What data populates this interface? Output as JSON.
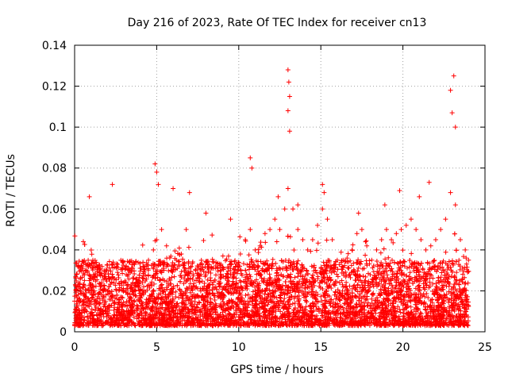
{
  "chart_data": {
    "type": "scatter",
    "title": "Day 216 of 2023, Rate Of TEC Index for receiver cn13",
    "xlabel": "GPS time / hours",
    "ylabel": "ROTI / TECUs",
    "xlim": [
      0,
      25
    ],
    "ylim": [
      0,
      0.14
    ],
    "xticks": [
      0,
      5,
      10,
      15,
      20,
      25
    ],
    "xtick_labels": [
      "0",
      "5",
      "10",
      "15",
      "20",
      "25"
    ],
    "yticks": [
      0,
      0.02,
      0.04,
      0.06,
      0.08,
      0.1,
      0.12,
      0.14
    ],
    "ytick_labels": [
      "0",
      "0.02",
      "0.04",
      "0.06",
      "0.08",
      "0.1",
      "0.12",
      "0.14"
    ],
    "grid": true,
    "marker": "+",
    "color": "#ff0000",
    "data_span_hours": [
      0,
      24
    ],
    "series": [
      {
        "name": "ROTI",
        "x": [
          0.0,
          0.3,
          0.6,
          0.9,
          1.2,
          1.5,
          1.8,
          2.1,
          2.4,
          2.7,
          3.0,
          3.3,
          3.6,
          3.9,
          4.2,
          4.5,
          4.8,
          5.0,
          5.3,
          5.6,
          5.9,
          6.2,
          6.5,
          6.8,
          7.1,
          7.4,
          7.7,
          8.0,
          8.3,
          8.6,
          8.9,
          9.2,
          9.5,
          9.8,
          10.1,
          10.4,
          10.7,
          11.0,
          11.3,
          11.6,
          11.9,
          12.2,
          12.5,
          12.8,
          13.0,
          13.3,
          13.6,
          13.9,
          14.2,
          14.5,
          14.8,
          15.1,
          15.4,
          15.7,
          16.0,
          16.3,
          16.6,
          16.9,
          17.2,
          17.5,
          17.8,
          18.1,
          18.4,
          18.7,
          19.0,
          19.3,
          19.6,
          19.9,
          20.2,
          20.5,
          20.8,
          21.1,
          21.4,
          21.7,
          22.0,
          22.3,
          22.6,
          22.9,
          23.2,
          23.5,
          23.8,
          24.0,
          4.9,
          5.0,
          5.1,
          10.7,
          10.8,
          13.0,
          13.05,
          13.1,
          13.0,
          13.1,
          15.1,
          15.2,
          22.9,
          23.0,
          23.1,
          23.2,
          21.0,
          21.6,
          19.8,
          6.0,
          7.0,
          2.3,
          0.9,
          8.0,
          9.5,
          12.4,
          13.6,
          17.3,
          18.9
        ],
        "y": [
          0.015,
          0.022,
          0.018,
          0.025,
          0.02,
          0.028,
          0.03,
          0.022,
          0.026,
          0.02,
          0.024,
          0.03,
          0.018,
          0.025,
          0.032,
          0.035,
          0.04,
          0.045,
          0.05,
          0.042,
          0.03,
          0.035,
          0.038,
          0.05,
          0.032,
          0.025,
          0.028,
          0.02,
          0.025,
          0.022,
          0.03,
          0.026,
          0.028,
          0.032,
          0.038,
          0.045,
          0.05,
          0.04,
          0.042,
          0.048,
          0.05,
          0.055,
          0.05,
          0.06,
          0.07,
          0.06,
          0.05,
          0.045,
          0.04,
          0.045,
          0.052,
          0.06,
          0.055,
          0.045,
          0.035,
          0.032,
          0.036,
          0.04,
          0.048,
          0.05,
          0.042,
          0.035,
          0.04,
          0.045,
          0.05,
          0.045,
          0.048,
          0.05,
          0.052,
          0.055,
          0.05,
          0.045,
          0.04,
          0.042,
          0.045,
          0.05,
          0.055,
          0.068,
          0.062,
          0.045,
          0.04,
          0.035,
          0.082,
          0.078,
          0.072,
          0.085,
          0.08,
          0.128,
          0.122,
          0.115,
          0.108,
          0.098,
          0.072,
          0.068,
          0.118,
          0.107,
          0.125,
          0.1,
          0.066,
          0.073,
          0.069,
          0.07,
          0.068,
          0.072,
          0.066,
          0.058,
          0.055,
          0.066,
          0.062,
          0.058,
          0.062
        ]
      }
    ],
    "noise_description_series": {
      "baseline_min": 0.003,
      "baseline_max": 0.035
    }
  }
}
